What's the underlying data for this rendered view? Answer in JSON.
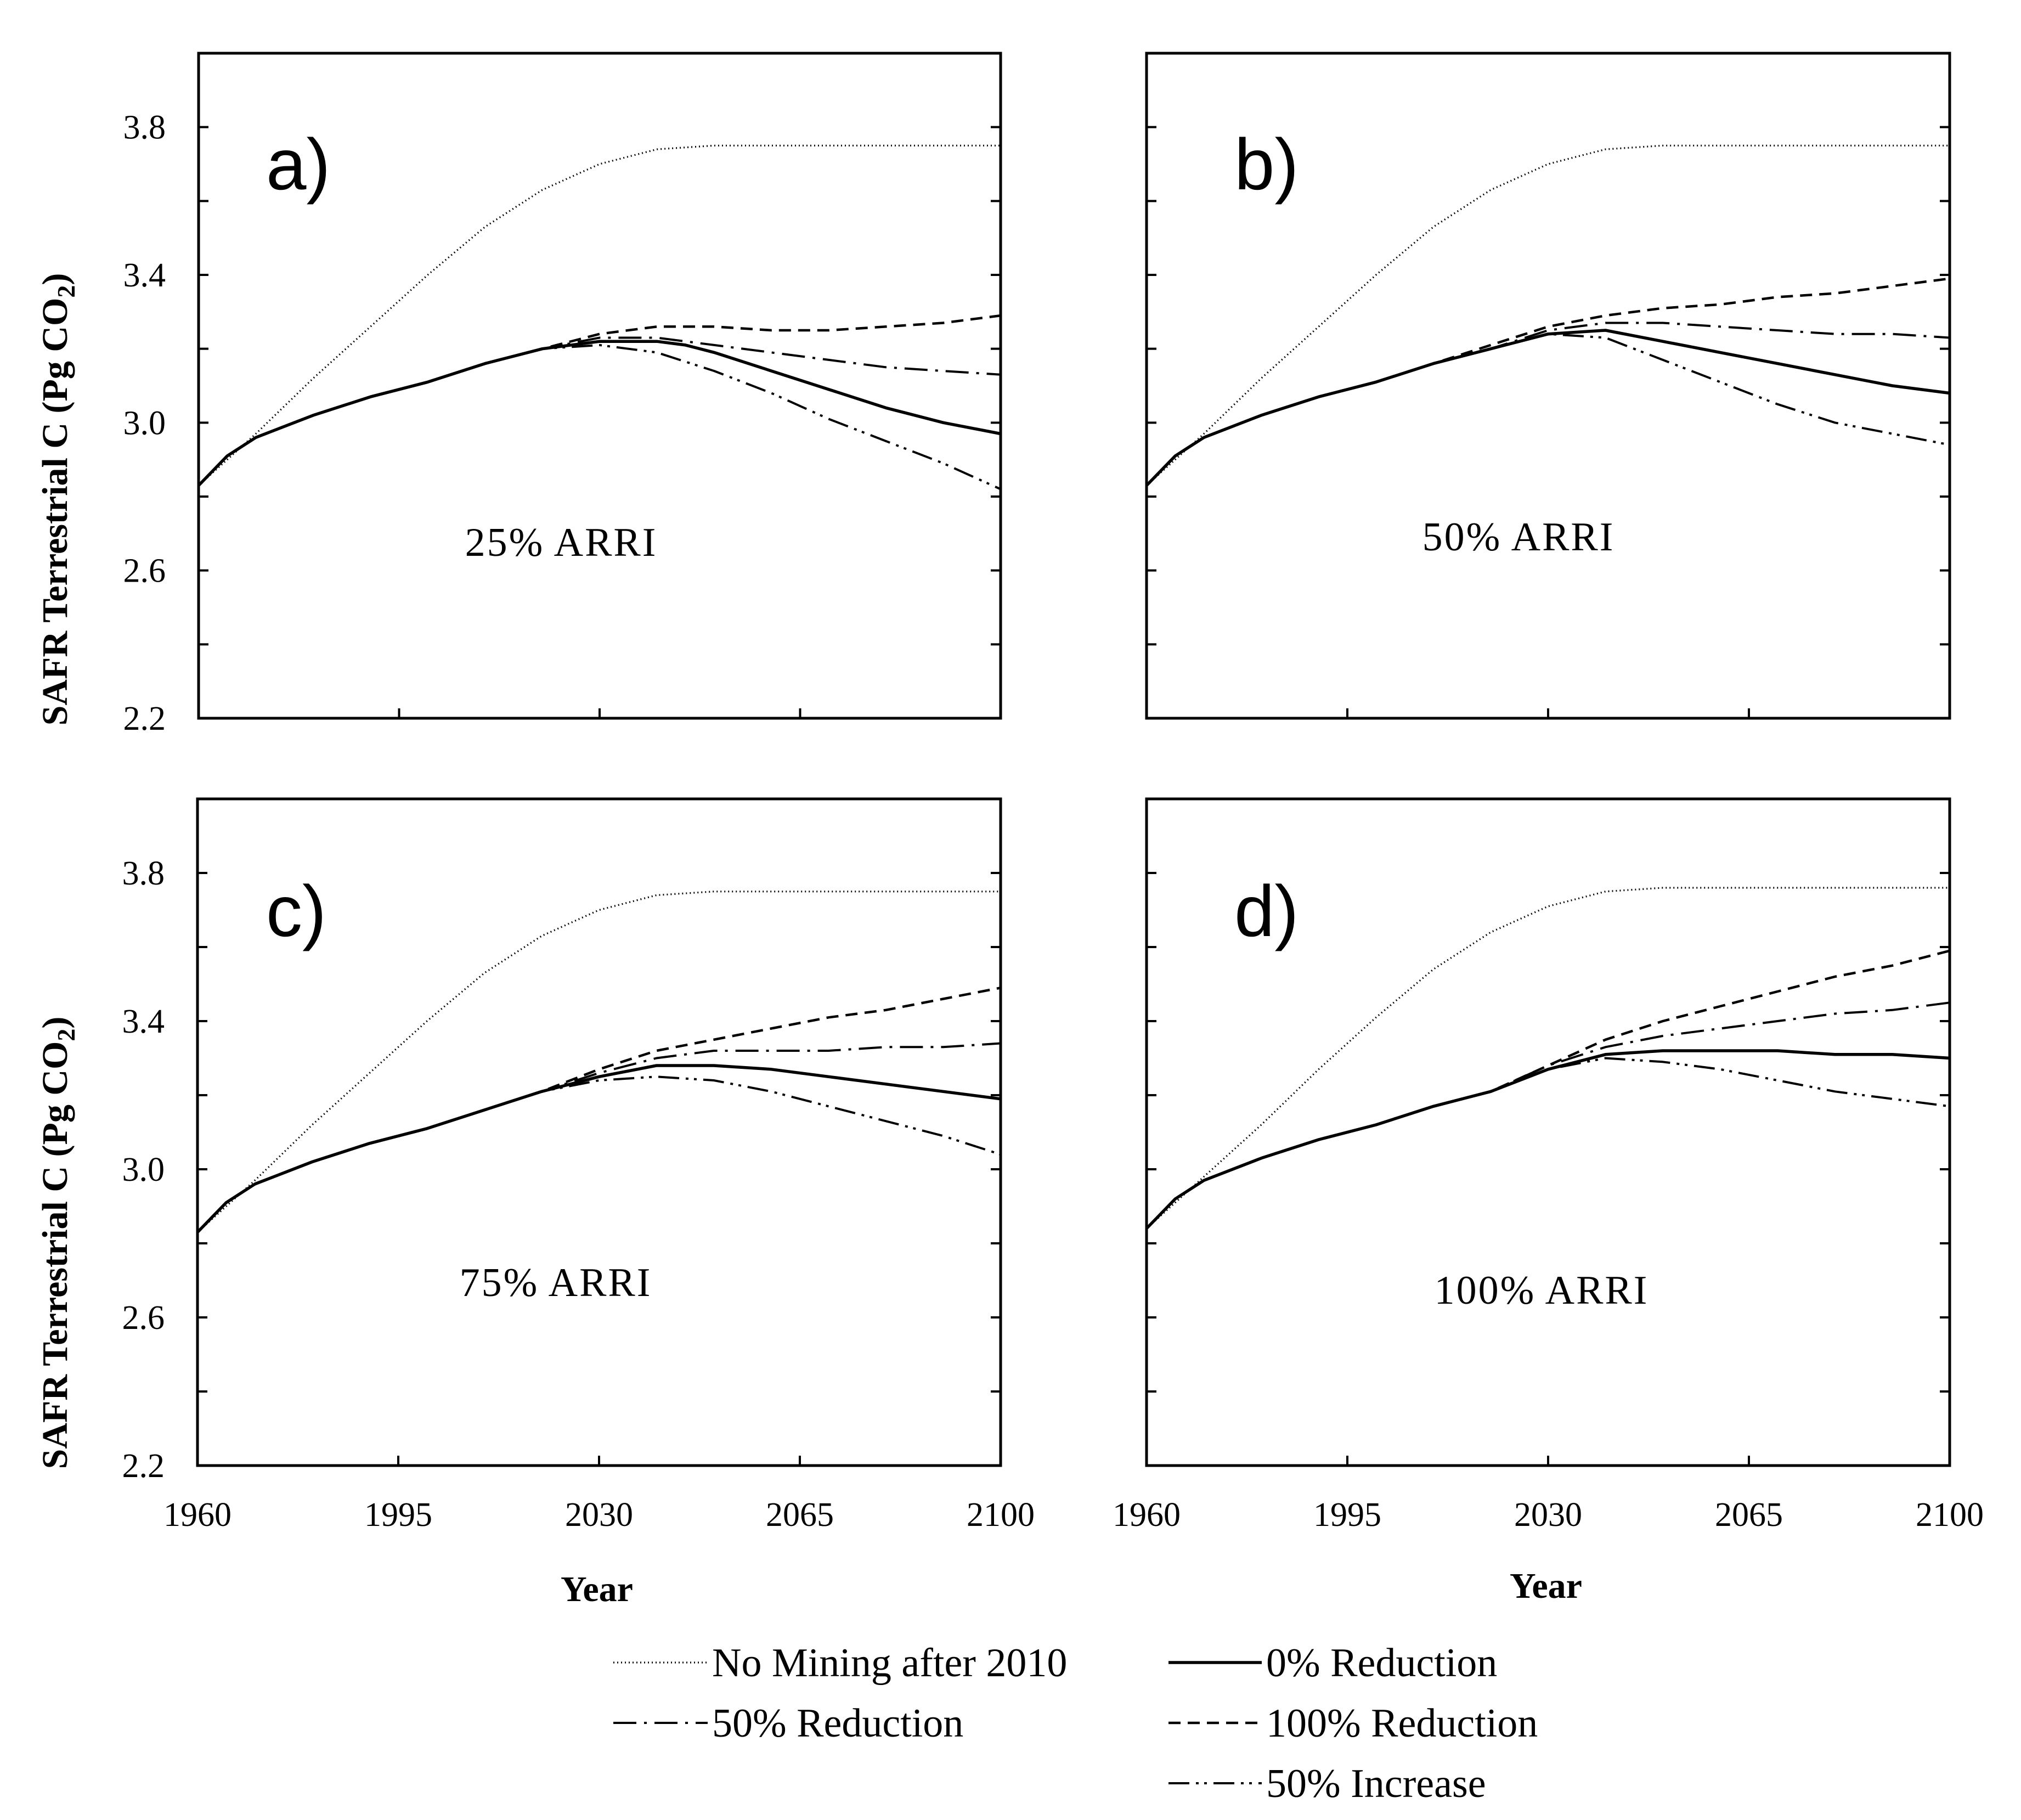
{
  "chart_data": {
    "type": "line",
    "title": "",
    "xlabel": "Year",
    "ylabel": "SAFR Terrestrial C (Pg CO₂)",
    "ylabel_main": "SAFR Terrestrial C (Pg CO",
    "ylabel_sub": "2",
    "ylabel_close": ")",
    "xlim": [
      1960,
      2100
    ],
    "ylim": [
      2.2,
      4.0
    ],
    "x_ticks": [
      "1960",
      "1995",
      "2030",
      "2065",
      "2100"
    ],
    "y_ticks": [
      "2.2",
      "2.6",
      "3.0",
      "3.4",
      "3.8"
    ],
    "grid": false,
    "legend_position": "bottom-center",
    "legend": [
      {
        "label": "No Mining after 2010",
        "style": "dotted"
      },
      {
        "label": "0% Reduction",
        "style": "solid"
      },
      {
        "label": "50% Reduction",
        "style": "dash-dot"
      },
      {
        "label": "100% Reduction",
        "style": "dashed"
      },
      {
        "label": "50% Increase",
        "style": "dash-dot-dot"
      }
    ],
    "panels": [
      {
        "label": "a)",
        "annotation": "25% ARRI",
        "series": [
          {
            "name": "No Mining after 2010",
            "x": [
              1960,
              1970,
              1980,
              1990,
              2000,
              2010,
              2020,
              2030,
              2040,
              2050,
              2060,
              2070,
              2080,
              2090,
              2100
            ],
            "values": [
              2.83,
              2.97,
              3.12,
              3.26,
              3.4,
              3.53,
              3.63,
              3.7,
              3.74,
              3.75,
              3.75,
              3.75,
              3.75,
              3.75,
              3.75
            ]
          },
          {
            "name": "0% Reduction",
            "x": [
              1960,
              1965,
              1970,
              1980,
              1990,
              2000,
              2010,
              2020,
              2030,
              2035,
              2040,
              2045,
              2050,
              2060,
              2070,
              2080,
              2090,
              2100
            ],
            "values": [
              2.83,
              2.91,
              2.96,
              3.02,
              3.07,
              3.11,
              3.16,
              3.2,
              3.22,
              3.22,
              3.22,
              3.21,
              3.19,
              3.14,
              3.09,
              3.04,
              3.0,
              2.97
            ]
          },
          {
            "name": "50% Reduction",
            "x": [
              1960,
              1965,
              1970,
              1980,
              1990,
              2000,
              2010,
              2020,
              2030,
              2040,
              2050,
              2060,
              2070,
              2080,
              2090,
              2100
            ],
            "values": [
              2.83,
              2.91,
              2.96,
              3.02,
              3.07,
              3.11,
              3.16,
              3.2,
              3.23,
              3.23,
              3.21,
              3.19,
              3.17,
              3.15,
              3.14,
              3.13
            ]
          },
          {
            "name": "100% Reduction",
            "x": [
              1960,
              1965,
              1970,
              1980,
              1990,
              2000,
              2010,
              2020,
              2030,
              2040,
              2050,
              2060,
              2070,
              2080,
              2090,
              2100
            ],
            "values": [
              2.83,
              2.91,
              2.96,
              3.02,
              3.07,
              3.11,
              3.16,
              3.2,
              3.24,
              3.26,
              3.26,
              3.25,
              3.25,
              3.26,
              3.27,
              3.29
            ]
          },
          {
            "name": "50% Increase",
            "x": [
              1960,
              1965,
              1970,
              1980,
              1990,
              2000,
              2010,
              2020,
              2030,
              2040,
              2050,
              2060,
              2070,
              2080,
              2090,
              2100
            ],
            "values": [
              2.83,
              2.91,
              2.96,
              3.02,
              3.07,
              3.11,
              3.16,
              3.2,
              3.21,
              3.19,
              3.14,
              3.08,
              3.01,
              2.95,
              2.89,
              2.82
            ]
          }
        ]
      },
      {
        "label": "b)",
        "annotation": "50% ARRI",
        "series": [
          {
            "name": "No Mining after 2010",
            "x": [
              1960,
              1970,
              1980,
              1990,
              2000,
              2010,
              2020,
              2030,
              2040,
              2050,
              2060,
              2070,
              2080,
              2090,
              2100
            ],
            "values": [
              2.83,
              2.97,
              3.12,
              3.26,
              3.4,
              3.53,
              3.63,
              3.7,
              3.74,
              3.75,
              3.75,
              3.75,
              3.75,
              3.75,
              3.75
            ]
          },
          {
            "name": "0% Reduction",
            "x": [
              1960,
              1965,
              1970,
              1980,
              1990,
              2000,
              2010,
              2020,
              2030,
              2040,
              2050,
              2060,
              2070,
              2080,
              2090,
              2100
            ],
            "values": [
              2.83,
              2.91,
              2.96,
              3.02,
              3.07,
              3.11,
              3.16,
              3.2,
              3.24,
              3.25,
              3.22,
              3.19,
              3.16,
              3.13,
              3.1,
              3.08
            ]
          },
          {
            "name": "50% Reduction",
            "x": [
              1960,
              1965,
              1970,
              1980,
              1990,
              2000,
              2010,
              2020,
              2030,
              2040,
              2050,
              2060,
              2070,
              2080,
              2090,
              2100
            ],
            "values": [
              2.83,
              2.91,
              2.96,
              3.02,
              3.07,
              3.11,
              3.16,
              3.2,
              3.25,
              3.27,
              3.27,
              3.26,
              3.25,
              3.24,
              3.24,
              3.23
            ]
          },
          {
            "name": "100% Reduction",
            "x": [
              1960,
              1965,
              1970,
              1980,
              1990,
              2000,
              2010,
              2020,
              2030,
              2040,
              2050,
              2060,
              2070,
              2080,
              2090,
              2100
            ],
            "values": [
              2.83,
              2.91,
              2.96,
              3.02,
              3.07,
              3.11,
              3.16,
              3.21,
              3.26,
              3.29,
              3.31,
              3.32,
              3.34,
              3.35,
              3.37,
              3.39
            ]
          },
          {
            "name": "50% Increase",
            "x": [
              1960,
              1965,
              1970,
              1980,
              1990,
              2000,
              2010,
              2020,
              2030,
              2040,
              2050,
              2060,
              2070,
              2080,
              2090,
              2100
            ],
            "values": [
              2.83,
              2.91,
              2.96,
              3.02,
              3.07,
              3.11,
              3.16,
              3.2,
              3.24,
              3.23,
              3.17,
              3.11,
              3.05,
              3.0,
              2.97,
              2.94
            ]
          }
        ]
      },
      {
        "label": "c)",
        "annotation": "75% ARRI",
        "series": [
          {
            "name": "No Mining after 2010",
            "x": [
              1960,
              1970,
              1980,
              1990,
              2000,
              2010,
              2020,
              2030,
              2040,
              2050,
              2060,
              2070,
              2080,
              2090,
              2100
            ],
            "values": [
              2.83,
              2.97,
              3.12,
              3.26,
              3.4,
              3.53,
              3.63,
              3.7,
              3.74,
              3.75,
              3.75,
              3.75,
              3.75,
              3.75,
              3.75
            ]
          },
          {
            "name": "0% Reduction",
            "x": [
              1960,
              1965,
              1970,
              1980,
              1990,
              2000,
              2010,
              2020,
              2030,
              2040,
              2050,
              2060,
              2070,
              2080,
              2090,
              2100
            ],
            "values": [
              2.83,
              2.91,
              2.96,
              3.02,
              3.07,
              3.11,
              3.16,
              3.21,
              3.25,
              3.28,
              3.28,
              3.27,
              3.25,
              3.23,
              3.21,
              3.19
            ]
          },
          {
            "name": "50% Reduction",
            "x": [
              1960,
              1965,
              1970,
              1980,
              1990,
              2000,
              2010,
              2020,
              2030,
              2040,
              2050,
              2060,
              2070,
              2080,
              2090,
              2100
            ],
            "values": [
              2.83,
              2.91,
              2.96,
              3.02,
              3.07,
              3.11,
              3.16,
              3.21,
              3.26,
              3.3,
              3.32,
              3.32,
              3.32,
              3.33,
              3.33,
              3.34
            ]
          },
          {
            "name": "100% Reduction",
            "x": [
              1960,
              1965,
              1970,
              1980,
              1990,
              2000,
              2010,
              2020,
              2030,
              2040,
              2050,
              2060,
              2070,
              2080,
              2090,
              2100
            ],
            "values": [
              2.83,
              2.91,
              2.96,
              3.02,
              3.07,
              3.11,
              3.16,
              3.21,
              3.27,
              3.32,
              3.35,
              3.38,
              3.41,
              3.43,
              3.46,
              3.49
            ]
          },
          {
            "name": "50% Increase",
            "x": [
              1960,
              1965,
              1970,
              1980,
              1990,
              2000,
              2010,
              2020,
              2030,
              2040,
              2050,
              2060,
              2070,
              2080,
              2090,
              2100
            ],
            "values": [
              2.83,
              2.91,
              2.96,
              3.02,
              3.07,
              3.11,
              3.16,
              3.21,
              3.24,
              3.25,
              3.24,
              3.21,
              3.17,
              3.13,
              3.09,
              3.04
            ]
          }
        ]
      },
      {
        "label": "d)",
        "annotation": "100% ARRI",
        "series": [
          {
            "name": "No Mining after 2010",
            "x": [
              1960,
              1970,
              1980,
              1990,
              2000,
              2010,
              2020,
              2030,
              2040,
              2050,
              2060,
              2070,
              2080,
              2090,
              2100
            ],
            "values": [
              2.84,
              2.98,
              3.12,
              3.27,
              3.41,
              3.54,
              3.64,
              3.71,
              3.75,
              3.76,
              3.76,
              3.76,
              3.76,
              3.76,
              3.76
            ]
          },
          {
            "name": "0% Reduction",
            "x": [
              1960,
              1965,
              1970,
              1980,
              1990,
              2000,
              2010,
              2020,
              2030,
              2040,
              2050,
              2060,
              2070,
              2080,
              2090,
              2100
            ],
            "values": [
              2.84,
              2.92,
              2.97,
              3.03,
              3.08,
              3.12,
              3.17,
              3.21,
              3.27,
              3.31,
              3.32,
              3.32,
              3.32,
              3.31,
              3.31,
              3.3
            ]
          },
          {
            "name": "50% Reduction",
            "x": [
              1960,
              1965,
              1970,
              1980,
              1990,
              2000,
              2010,
              2020,
              2030,
              2040,
              2050,
              2060,
              2070,
              2080,
              2090,
              2100
            ],
            "values": [
              2.84,
              2.92,
              2.97,
              3.03,
              3.08,
              3.12,
              3.17,
              3.21,
              3.28,
              3.33,
              3.36,
              3.38,
              3.4,
              3.42,
              3.43,
              3.45
            ]
          },
          {
            "name": "100% Reduction",
            "x": [
              1960,
              1965,
              1970,
              1980,
              1990,
              2000,
              2010,
              2020,
              2030,
              2040,
              2050,
              2060,
              2070,
              2080,
              2090,
              2100
            ],
            "values": [
              2.84,
              2.92,
              2.97,
              3.03,
              3.08,
              3.12,
              3.17,
              3.21,
              3.28,
              3.35,
              3.4,
              3.44,
              3.48,
              3.52,
              3.55,
              3.59
            ]
          },
          {
            "name": "50% Increase",
            "x": [
              1960,
              1965,
              1970,
              1980,
              1990,
              2000,
              2010,
              2020,
              2030,
              2040,
              2050,
              2060,
              2070,
              2080,
              2090,
              2100
            ],
            "values": [
              2.84,
              2.92,
              2.97,
              3.03,
              3.08,
              3.12,
              3.17,
              3.21,
              3.27,
              3.3,
              3.29,
              3.27,
              3.24,
              3.21,
              3.19,
              3.17
            ]
          }
        ]
      }
    ]
  }
}
